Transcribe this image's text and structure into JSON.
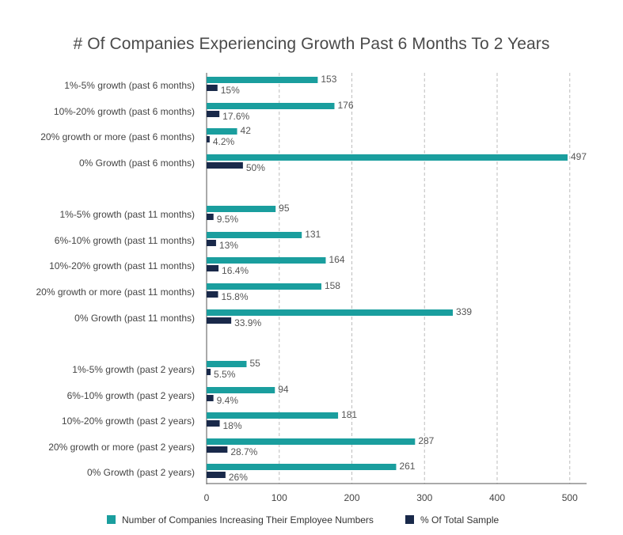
{
  "chart_data": {
    "type": "bar",
    "orientation": "horizontal",
    "title": "# Of Companies Experiencing Growth Past 6 Months To 2 Years",
    "xlim": [
      0,
      520
    ],
    "xticks": [
      "0",
      "100",
      "200",
      "300",
      "400",
      "500"
    ],
    "grid": "vertical dashed",
    "legend_position": "bottom",
    "colors": {
      "count": "#1a9e9e",
      "percent": "#19294a"
    },
    "categories": [
      "1%-5% growth (past 6 months)",
      "10%-20% growth (past 6 months)",
      "20% growth or more (past 6 months)",
      "0% Growth (past 6 months)",
      "1%-5% growth (past 11 months)",
      "6%-10% growth (past 11 months)",
      "10%-20% growth (past 11 months)",
      "20% growth or more (past 11 months)",
      "0% Growth (past 11 months)",
      "1%-5% growth (past 2 years)",
      "6%-10% growth (past 2 years)",
      "10%-20% growth (past 2 years)",
      "20% growth or more (past 2 years)",
      "0% Growth (past 2 years)"
    ],
    "series": [
      {
        "name": "Number of Companies Increasing Their Employee Numbers",
        "values": [
          153,
          176,
          42,
          497,
          95,
          131,
          164,
          158,
          339,
          55,
          94,
          181,
          287,
          261
        ],
        "labels": [
          "153",
          "176",
          "42",
          "497",
          "95",
          "131",
          "164",
          "158",
          "339",
          "55",
          "94",
          "181",
          "287",
          "261"
        ]
      },
      {
        "name": "% Of Total Sample",
        "values": [
          15,
          17.6,
          4.2,
          50,
          9.5,
          13,
          16.4,
          15.8,
          33.9,
          5.5,
          9.4,
          18,
          28.7,
          26
        ],
        "labels": [
          "15%",
          "17.6%",
          "4.2%",
          "50%",
          "9.5%",
          "13%",
          "16.4%",
          "15.8%",
          "33.9%",
          "5.5%",
          "9.4%",
          "18%",
          "28.7%",
          "26%"
        ]
      }
    ]
  }
}
